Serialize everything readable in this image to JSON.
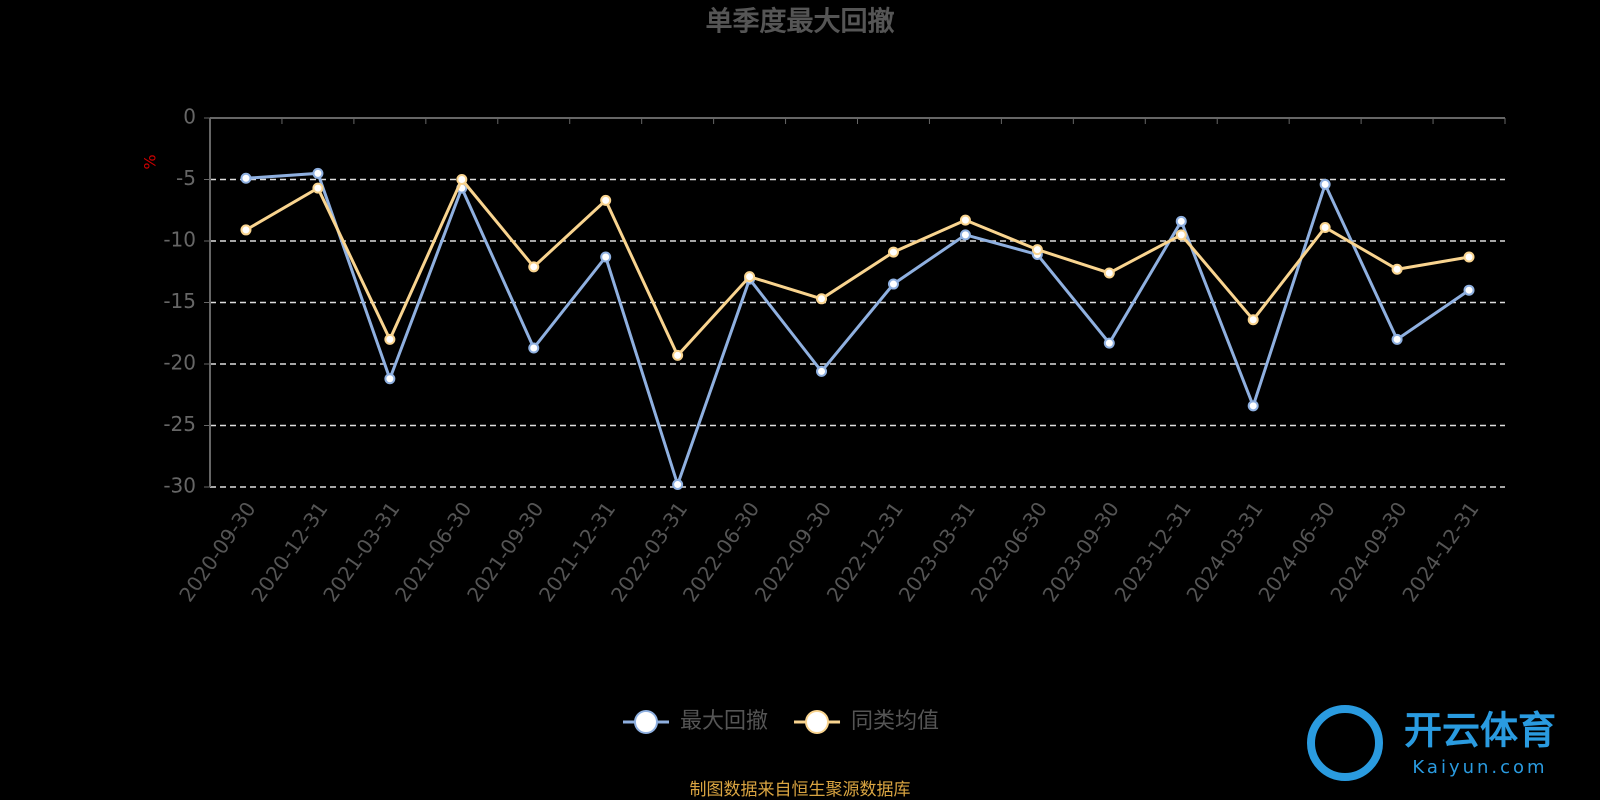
{
  "chart_data": {
    "type": "line",
    "title": "单季度最大回撤",
    "y_label": "%",
    "categories": [
      "2020-09-30",
      "2020-12-31",
      "2021-03-31",
      "2021-06-30",
      "2021-09-30",
      "2021-12-31",
      "2022-03-31",
      "2022-06-30",
      "2022-09-30",
      "2022-12-31",
      "2023-03-31",
      "2023-06-30",
      "2023-09-30",
      "2023-12-31",
      "2024-03-31",
      "2024-06-30",
      "2024-09-30",
      "2024-12-31"
    ],
    "series": [
      {
        "name": "最大回撤",
        "color": "#8fb0e0",
        "values": [
          -4.9,
          -4.5,
          -21.2,
          -5.7,
          -18.7,
          -11.3,
          -29.8,
          -13.1,
          -20.6,
          -13.5,
          -9.5,
          -11.1,
          -18.3,
          -8.4,
          -23.4,
          -5.4,
          -18.0,
          -14.0
        ]
      },
      {
        "name": "同类均值",
        "color": "#f9d48f",
        "values": [
          -9.1,
          -5.7,
          -18.0,
          -5.0,
          -12.1,
          -6.7,
          -19.3,
          -12.9,
          -14.7,
          -10.9,
          -8.3,
          -10.7,
          -12.6,
          -9.5,
          -16.4,
          -8.9,
          -12.3,
          -11.3
        ]
      }
    ],
    "ylim": [
      -30,
      0
    ],
    "yticks": [
      0,
      -5,
      -10,
      -15,
      -20,
      -25,
      -30
    ],
    "grid": true,
    "source": "制图数据来自恒生聚源数据库"
  },
  "watermark": {
    "brand": "开云体育",
    "site": "Kaiyun.com"
  }
}
